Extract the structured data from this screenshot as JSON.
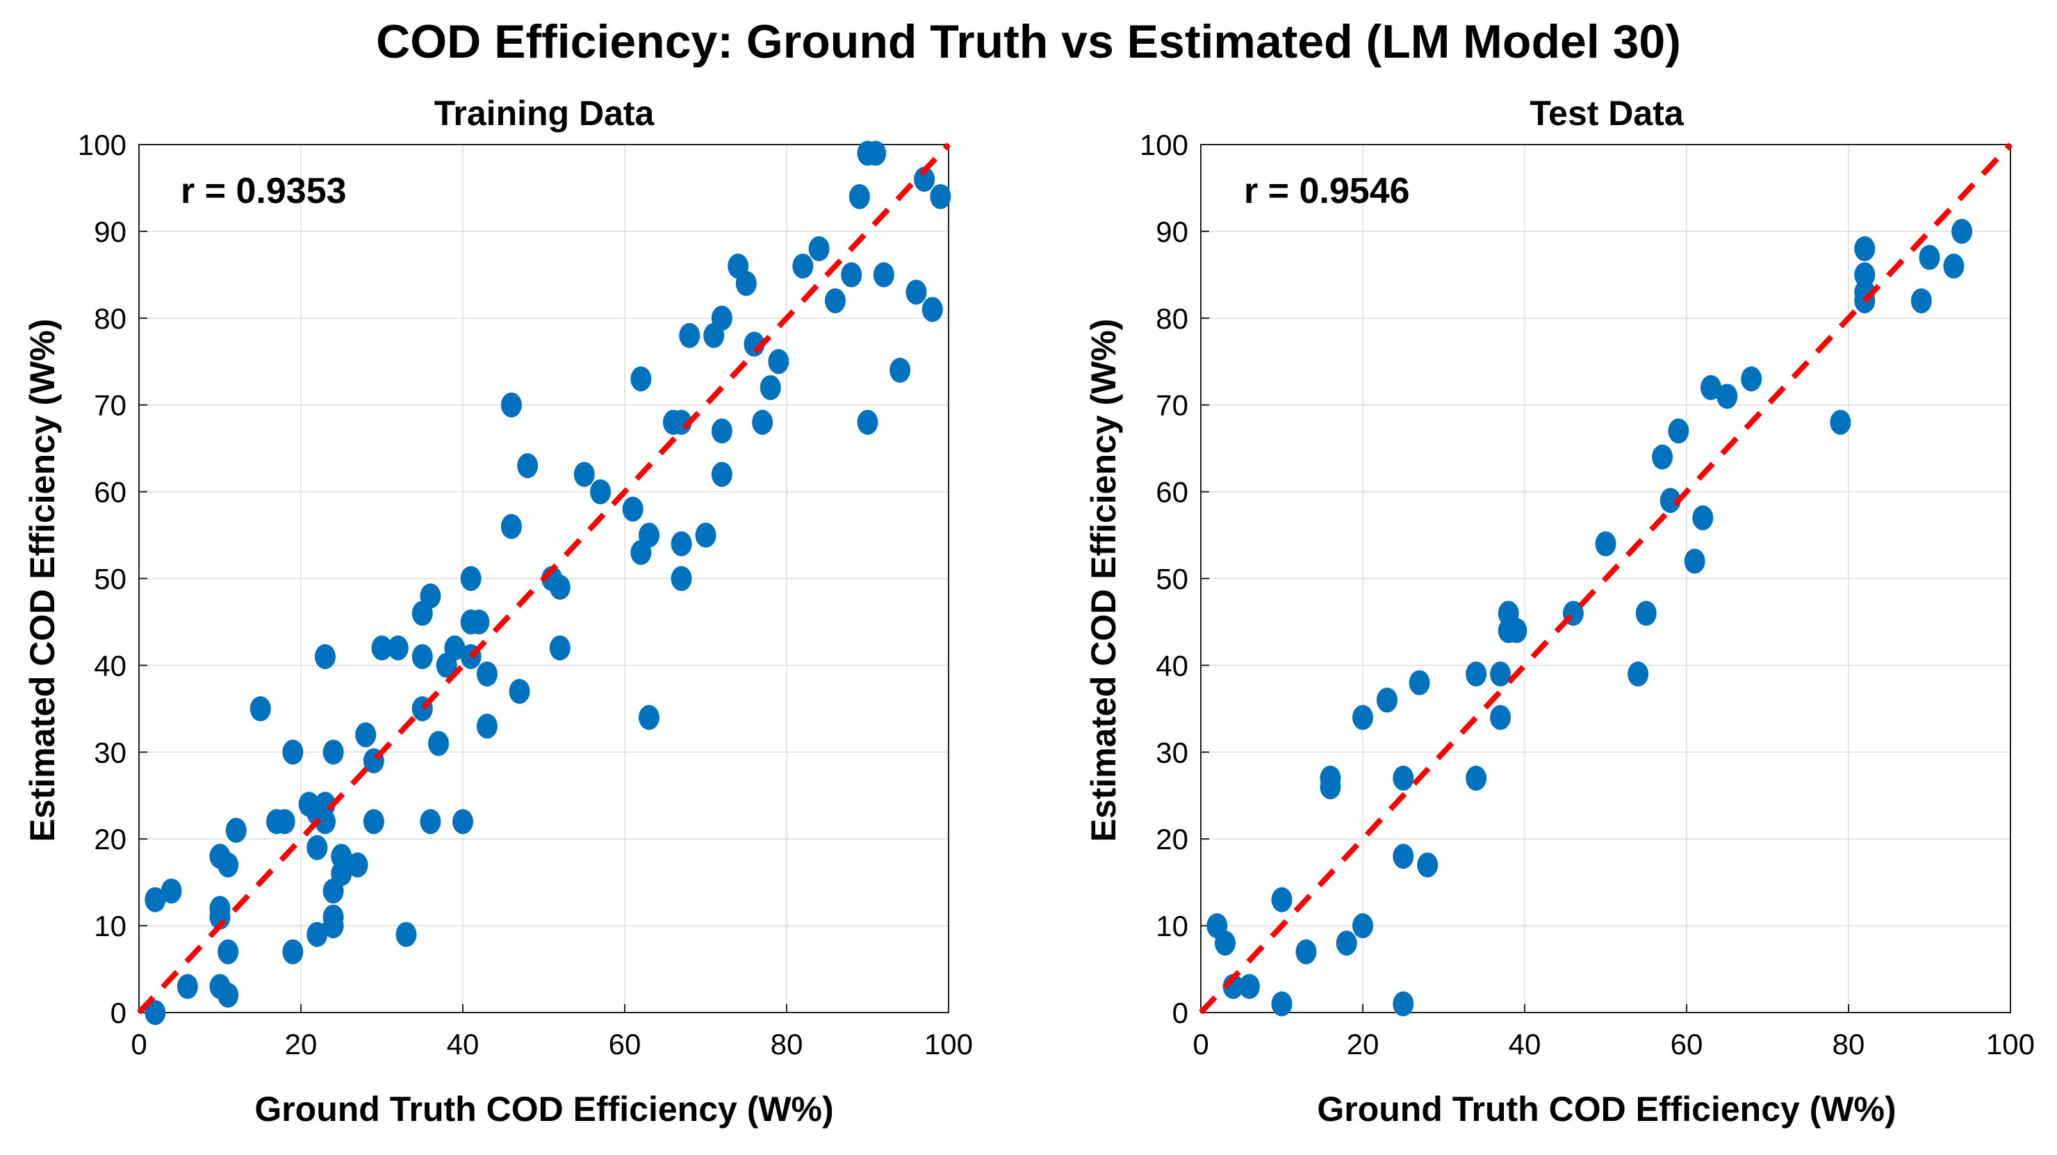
{
  "title": "COD Efficiency: Ground Truth vs Estimated (LM Model 30)",
  "colors": {
    "points": "#0072BD",
    "fit_line": "#ff0000",
    "grid": "#dddddd",
    "axes": "#222222"
  },
  "chart_data": [
    {
      "type": "scatter",
      "title": "Training Data",
      "xlabel": "Ground Truth COD Efficiency (W%)",
      "ylabel": "Estimated COD Efficiency (W%)",
      "xlim": [
        0,
        100
      ],
      "ylim": [
        0,
        100
      ],
      "xticks": [
        0,
        20,
        40,
        60,
        80,
        100
      ],
      "yticks": [
        0,
        10,
        20,
        30,
        40,
        50,
        60,
        70,
        80,
        90,
        100
      ],
      "grid": true,
      "annotation": "r = 0.9353",
      "reference_line": {
        "from": [
          0,
          0
        ],
        "to": [
          100,
          100
        ],
        "style": "dashed"
      },
      "points": [
        [
          2,
          13
        ],
        [
          4,
          14
        ],
        [
          2,
          0
        ],
        [
          6,
          3
        ],
        [
          10,
          3
        ],
        [
          11,
          2
        ],
        [
          10,
          11
        ],
        [
          10,
          12
        ],
        [
          10,
          18
        ],
        [
          11,
          17
        ],
        [
          12,
          21
        ],
        [
          11,
          7
        ],
        [
          15,
          35
        ],
        [
          17,
          22
        ],
        [
          18,
          22
        ],
        [
          19,
          30
        ],
        [
          19,
          7
        ],
        [
          21,
          24
        ],
        [
          22,
          23
        ],
        [
          22,
          19
        ],
        [
          23,
          24
        ],
        [
          22,
          9
        ],
        [
          23,
          22
        ],
        [
          23,
          41
        ],
        [
          24,
          14
        ],
        [
          24,
          10
        ],
        [
          24,
          11
        ],
        [
          24,
          30
        ],
        [
          25,
          16
        ],
        [
          25,
          18
        ],
        [
          27,
          17
        ],
        [
          28,
          32
        ],
        [
          29,
          22
        ],
        [
          29,
          29
        ],
        [
          30,
          42
        ],
        [
          32,
          42
        ],
        [
          33,
          9
        ],
        [
          35,
          46
        ],
        [
          35,
          41
        ],
        [
          35,
          35
        ],
        [
          36,
          48
        ],
        [
          36,
          22
        ],
        [
          37,
          31
        ],
        [
          38,
          40
        ],
        [
          39,
          42
        ],
        [
          40,
          22
        ],
        [
          41,
          50
        ],
        [
          41,
          45
        ],
        [
          41,
          41
        ],
        [
          42,
          45
        ],
        [
          43,
          39
        ],
        [
          43,
          33
        ],
        [
          46,
          70
        ],
        [
          46,
          56
        ],
        [
          47,
          37
        ],
        [
          48,
          63
        ],
        [
          51,
          50
        ],
        [
          52,
          42
        ],
        [
          52,
          49
        ],
        [
          55,
          62
        ],
        [
          57,
          60
        ],
        [
          61,
          58
        ],
        [
          62,
          53
        ],
        [
          62,
          73
        ],
        [
          63,
          55
        ],
        [
          63,
          34
        ],
        [
          66,
          68
        ],
        [
          67,
          68
        ],
        [
          67,
          54
        ],
        [
          67,
          50
        ],
        [
          68,
          78
        ],
        [
          70,
          55
        ],
        [
          71,
          78
        ],
        [
          72,
          80
        ],
        [
          72,
          62
        ],
        [
          72,
          67
        ],
        [
          74,
          86
        ],
        [
          75,
          84
        ],
        [
          76,
          77
        ],
        [
          77,
          68
        ],
        [
          78,
          72
        ],
        [
          79,
          75
        ],
        [
          82,
          86
        ],
        [
          84,
          88
        ],
        [
          86,
          82
        ],
        [
          88,
          85
        ],
        [
          89,
          94
        ],
        [
          90,
          68
        ],
        [
          90,
          99
        ],
        [
          91,
          99
        ],
        [
          92,
          85
        ],
        [
          94,
          74
        ],
        [
          96,
          83
        ],
        [
          97,
          96
        ],
        [
          98,
          81
        ],
        [
          99,
          94
        ]
      ]
    },
    {
      "type": "scatter",
      "title": "Test Data",
      "xlabel": "Ground Truth COD Efficiency (W%)",
      "ylabel": "Estimated COD Efficiency (W%)",
      "xlim": [
        0,
        100
      ],
      "ylim": [
        0,
        100
      ],
      "xticks": [
        0,
        20,
        40,
        60,
        80,
        100
      ],
      "yticks": [
        0,
        10,
        20,
        30,
        40,
        50,
        60,
        70,
        80,
        90,
        100
      ],
      "grid": true,
      "annotation": "r = 0.9546",
      "reference_line": {
        "from": [
          0,
          0
        ],
        "to": [
          100,
          100
        ],
        "style": "dashed"
      },
      "points": [
        [
          2,
          10
        ],
        [
          3,
          8
        ],
        [
          4,
          3
        ],
        [
          6,
          3
        ],
        [
          10,
          1
        ],
        [
          10,
          13
        ],
        [
          13,
          7
        ],
        [
          16,
          26
        ],
        [
          16,
          27
        ],
        [
          18,
          8
        ],
        [
          20,
          10
        ],
        [
          20,
          34
        ],
        [
          23,
          36
        ],
        [
          25,
          18
        ],
        [
          25,
          27
        ],
        [
          25,
          1
        ],
        [
          27,
          38
        ],
        [
          28,
          17
        ],
        [
          34,
          39
        ],
        [
          34,
          27
        ],
        [
          37,
          39
        ],
        [
          37,
          34
        ],
        [
          38,
          44
        ],
        [
          38,
          46
        ],
        [
          39,
          44
        ],
        [
          46,
          46
        ],
        [
          50,
          54
        ],
        [
          54,
          39
        ],
        [
          55,
          46
        ],
        [
          57,
          64
        ],
        [
          58,
          59
        ],
        [
          59,
          67
        ],
        [
          61,
          52
        ],
        [
          62,
          57
        ],
        [
          63,
          72
        ],
        [
          65,
          71
        ],
        [
          68,
          73
        ],
        [
          79,
          68
        ],
        [
          82,
          82
        ],
        [
          82,
          83
        ],
        [
          82,
          85
        ],
        [
          82,
          88
        ],
        [
          89,
          82
        ],
        [
          90,
          87
        ],
        [
          93,
          86
        ],
        [
          94,
          90
        ]
      ]
    }
  ]
}
